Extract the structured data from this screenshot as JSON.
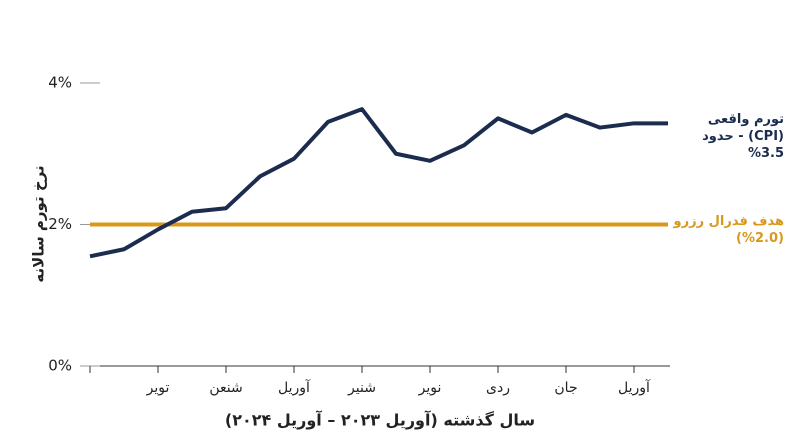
{
  "chart_data": {
    "type": "line",
    "x_label": "سال گذشته (آوریل ۲۰۲۳ – آوریل ۲۰۲۴)",
    "y_label": "نرخ تورم سالانه",
    "categories": [
      null,
      null,
      "تویر",
      null,
      "شنعن",
      null,
      "آوریل",
      null,
      "شنیر",
      null,
      "نویر",
      null,
      "ردی",
      null,
      "جان",
      null,
      "آوریل",
      null
    ],
    "series": [
      {
        "name": "تورم واقعی (CPI) - حدود 3.5%",
        "color": "#1b2c4e",
        "values": [
          1.55,
          1.65,
          1.93,
          2.18,
          2.23,
          2.68,
          2.93,
          3.45,
          3.63,
          3.0,
          2.9,
          3.12,
          3.5,
          3.3,
          3.55,
          3.37,
          3.43,
          3.43
        ]
      },
      {
        "name": "هدف فدرال رزرو (2.0%)",
        "color": "#d9981c",
        "values": [
          2,
          2,
          2,
          2,
          2,
          2,
          2,
          2,
          2,
          2,
          2,
          2,
          2,
          2,
          2,
          2,
          2,
          2
        ]
      }
    ],
    "ylim": [
      0,
      4
    ],
    "yticks": [
      {
        "value": 0,
        "label": "0%"
      },
      {
        "value": 2,
        "label": "2%"
      },
      {
        "value": 4,
        "label": "4%"
      }
    ]
  }
}
